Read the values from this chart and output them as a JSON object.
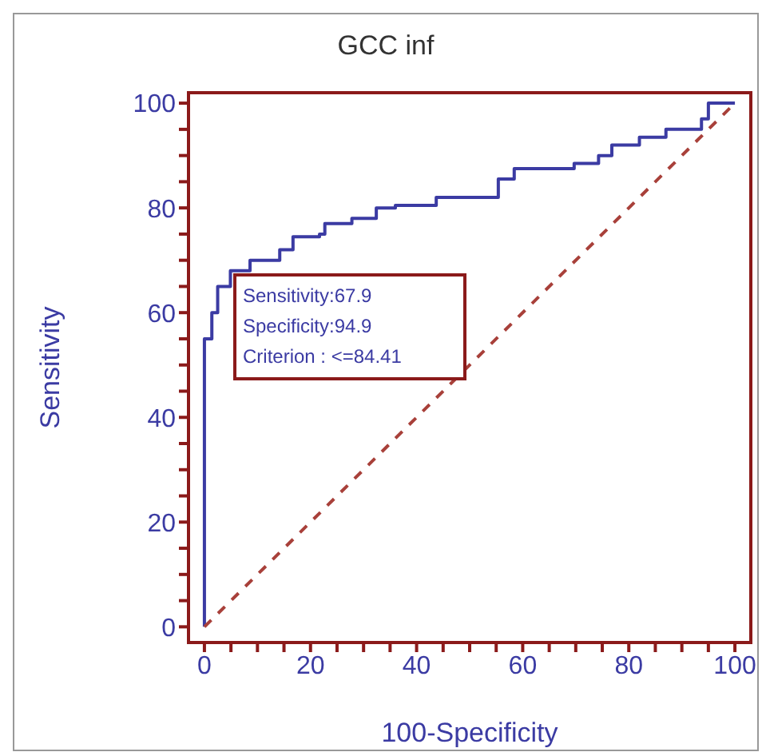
{
  "chart_data": {
    "type": "line",
    "title": "GCC inf",
    "xlabel": "100-Specificity",
    "ylabel": "Sensitivity",
    "annotations": [
      "Sensitivity:67.9",
      "Specificity:94.9",
      "Criterion : <=84.41"
    ],
    "xlim": [
      -3,
      103
    ],
    "ylim": [
      -3,
      102
    ],
    "xticks": [
      0,
      {
        "value": 5,
        "label": null
      },
      {
        "value": 10,
        "label": null
      },
      {
        "value": 15,
        "label": null
      },
      20,
      {
        "value": 25,
        "label": null
      },
      {
        "value": 30,
        "label": null
      },
      {
        "value": 35,
        "label": null
      },
      40,
      {
        "value": 45,
        "label": null
      },
      {
        "value": 50,
        "label": null
      },
      {
        "value": 55,
        "label": null
      },
      60,
      {
        "value": 65,
        "label": null
      },
      {
        "value": 70,
        "label": null
      },
      {
        "value": 75,
        "label": null
      },
      80,
      {
        "value": 85,
        "label": null
      },
      {
        "value": 90,
        "label": null
      },
      {
        "value": 95,
        "label": null
      },
      100
    ],
    "yticks": [
      0,
      {
        "value": 5,
        "label": null
      },
      {
        "value": 10,
        "label": null
      },
      {
        "value": 15,
        "label": null
      },
      20,
      {
        "value": 25,
        "label": null
      },
      {
        "value": 30,
        "label": null
      },
      {
        "value": 35,
        "label": null
      },
      40,
      {
        "value": 45,
        "label": null
      },
      {
        "value": 50,
        "label": null
      },
      {
        "value": 55,
        "label": null
      },
      60,
      {
        "value": 65,
        "label": null
      },
      {
        "value": 70,
        "label": null
      },
      {
        "value": 75,
        "label": null
      },
      80,
      {
        "value": 85,
        "label": null
      },
      {
        "value": 90,
        "label": null
      },
      {
        "value": 95,
        "label": null
      },
      100
    ],
    "grid": false,
    "legend": false,
    "marker": "none",
    "series": [
      {
        "type": "step",
        "color": "#3b3ba3",
        "line_style": "solid",
        "x": [
          0,
          0,
          1.4,
          2.5,
          4.9,
          8.6,
          14.2,
          16.7,
          21.7,
          22.7,
          27.8,
          32.4,
          36,
          43.7,
          55.4,
          58.4,
          69.7,
          74.3,
          76.8,
          82,
          87,
          93.7,
          95,
          100
        ],
        "values": [
          0,
          55,
          60,
          65,
          68,
          70,
          72,
          74.5,
          75,
          77,
          78,
          80,
          80.5,
          82,
          85.5,
          87.5,
          88.5,
          90,
          92,
          93.5,
          95,
          97,
          100,
          100
        ]
      },
      {
        "type": "line",
        "color": "#a8403a",
        "line_style": "dashed",
        "x": [
          0,
          100
        ],
        "values": [
          0,
          100
        ]
      }
    ]
  }
}
